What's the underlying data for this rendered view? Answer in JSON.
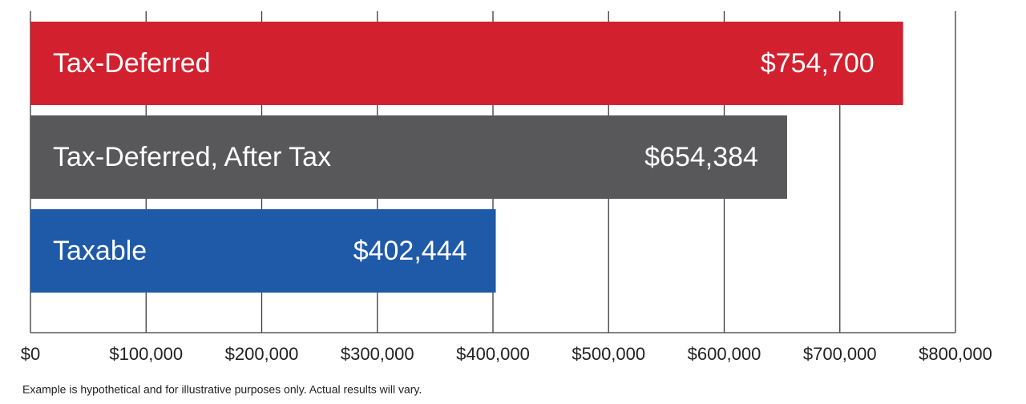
{
  "chart_data": {
    "type": "bar",
    "orientation": "horizontal",
    "categories": [
      "Tax-Deferred",
      "Tax-Deferred, After Tax",
      "Taxable"
    ],
    "values": [
      754700,
      654384,
      402444
    ],
    "value_labels": [
      "$754,700",
      "$654,384",
      "$402,444"
    ],
    "colors": [
      "#d2202f",
      "#58585a",
      "#1f5aa9"
    ],
    "xlim": [
      0,
      800000
    ],
    "xticks": [
      {
        "value": 0,
        "label": "$0"
      },
      {
        "value": 100000,
        "label": "$100,000"
      },
      {
        "value": 200000,
        "label": "$200,000"
      },
      {
        "value": 300000,
        "label": "$300,000"
      },
      {
        "value": 400000,
        "label": "$400,000"
      },
      {
        "value": 500000,
        "label": "$500,000"
      },
      {
        "value": 600000,
        "label": "$600,000"
      },
      {
        "value": 700000,
        "label": "$700,000"
      },
      {
        "value": 800000,
        "label": "$800,000"
      }
    ],
    "grid": true,
    "note": "Example is hypothetical and for illustrative purposes only. Actual results will vary."
  }
}
